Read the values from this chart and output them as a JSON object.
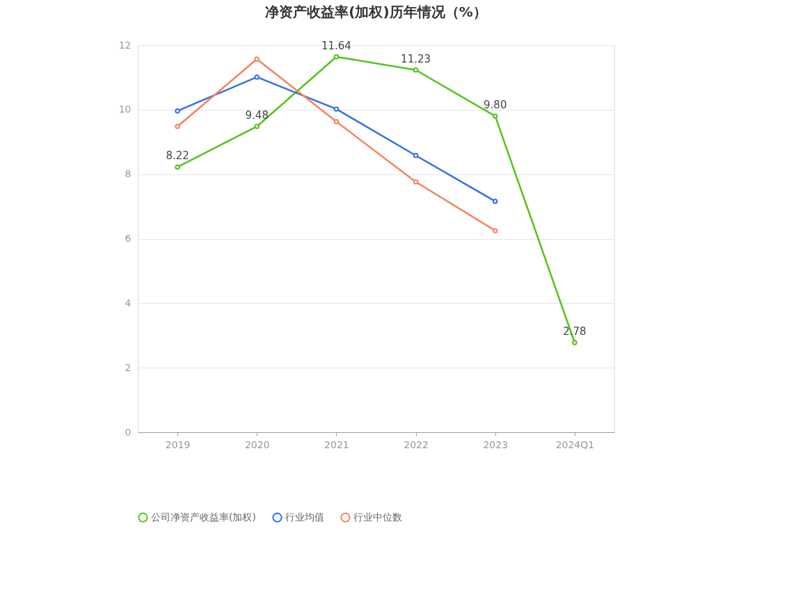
{
  "chart_data": {
    "type": "line",
    "title": "净资产收益率(加权)历年情况（%）",
    "categories": [
      "2019",
      "2020",
      "2021",
      "2022",
      "2023",
      "2024Q1"
    ],
    "series": [
      {
        "name": "公司净资产收益率(加权)",
        "color": "#52c41a",
        "values": [
          8.22,
          9.48,
          11.64,
          11.23,
          9.8,
          2.78
        ],
        "value_labels": [
          "8.22",
          "9.48",
          "11.64",
          "11.23",
          "9.80",
          "2.78"
        ]
      },
      {
        "name": "行业均值",
        "color": "#3470e4",
        "values": [
          9.96,
          11.01,
          10.02,
          8.58,
          7.16,
          null
        ]
      },
      {
        "name": "行业中位数",
        "color": "#f5845b",
        "values": [
          9.48,
          11.57,
          9.63,
          7.76,
          6.25,
          null
        ]
      }
    ],
    "ylim": [
      0,
      12
    ],
    "yticks": [
      0,
      2,
      4,
      6,
      8,
      10,
      12
    ],
    "grid": "y",
    "legend": "bottom",
    "marker": "circle",
    "line_style": "solid"
  }
}
